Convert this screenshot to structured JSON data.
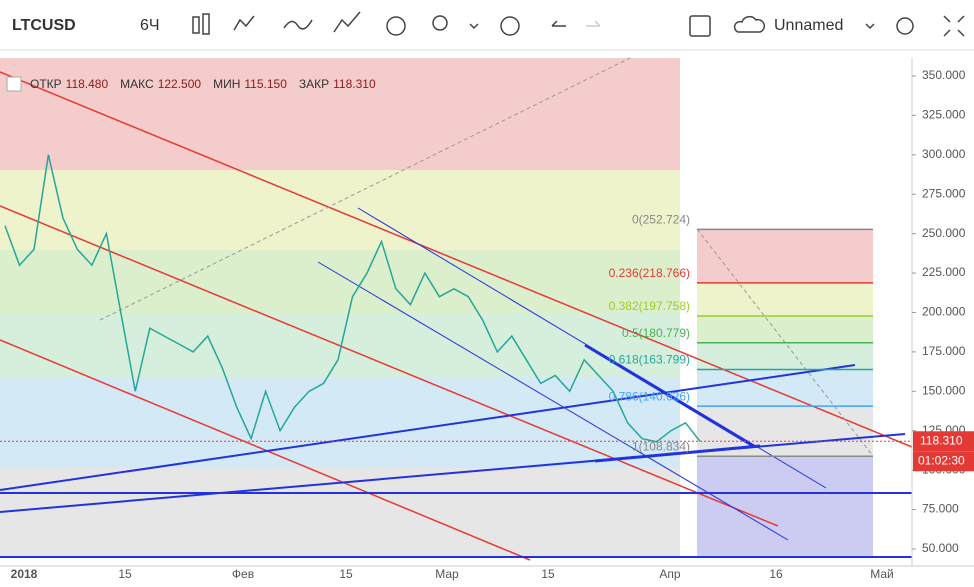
{
  "toolbar": {
    "symbol": "LTCUSD",
    "interval": "6Ч",
    "layout_name": "Unnamed"
  },
  "legend": [
    {
      "label": "ОТКР",
      "value": "118.480"
    },
    {
      "label": "МАКС",
      "value": "122.500"
    },
    {
      "label": "МИН",
      "value": "115.150"
    },
    {
      "label": "ЗАКР",
      "value": "118.310"
    }
  ],
  "chart_data": {
    "type": "line",
    "color": "#26a69a",
    "values": [
      255,
      230,
      240,
      300,
      260,
      240,
      230,
      250,
      200,
      150,
      190,
      185,
      180,
      175,
      185,
      165,
      140,
      120,
      150,
      125,
      140,
      150,
      155,
      170,
      210,
      225,
      245,
      215,
      205,
      225,
      210,
      215,
      210,
      195,
      175,
      185,
      170,
      155,
      160,
      150,
      170,
      160,
      150,
      130,
      120,
      118,
      125,
      130,
      118.31
    ],
    "ylim": [
      39.2,
      361.4
    ],
    "yticks": [
      {
        "value": 50,
        "label": "50.000"
      },
      {
        "value": 75,
        "label": "75.000"
      },
      {
        "value": 100,
        "label": "100.000"
      },
      {
        "value": 125,
        "label": "125.000"
      },
      {
        "value": 150,
        "label": "150.000"
      },
      {
        "value": 175,
        "label": "175.000"
      },
      {
        "value": 200,
        "label": "200.000"
      },
      {
        "value": 225,
        "label": "225.000"
      },
      {
        "value": 250,
        "label": "250.000"
      },
      {
        "value": 275,
        "label": "275.000"
      },
      {
        "value": 300,
        "label": "300.000"
      },
      {
        "value": 325,
        "label": "325.000"
      },
      {
        "value": 350,
        "label": "350.000"
      }
    ],
    "x_labels": [
      "2018",
      "15",
      "Фев",
      "15",
      "Мар",
      "15",
      "Апр",
      "16",
      "Май"
    ],
    "fib_levels": [
      {
        "label": "0(252.724)",
        "value": 252.724,
        "color": "#888888"
      },
      {
        "label": "0.236(218.766)",
        "value": 218.766,
        "color": "#e53935"
      },
      {
        "label": "0.382(197.758)",
        "value": 197.758,
        "color": "#9ccc2a"
      },
      {
        "label": "0.5(180.779)",
        "value": 180.779,
        "color": "#4caf50"
      },
      {
        "label": "0.618(163.799)",
        "value": 163.799,
        "color": "#26a69a"
      },
      {
        "label": "0.786(140.626)",
        "value": 140.626,
        "color": "#42a5f5"
      },
      {
        "label": "1(108.834)",
        "value": 108.834,
        "color": "#888888"
      }
    ],
    "last_price": {
      "value": 118.31,
      "label": "118.310"
    },
    "countdown": "01:02:30"
  }
}
